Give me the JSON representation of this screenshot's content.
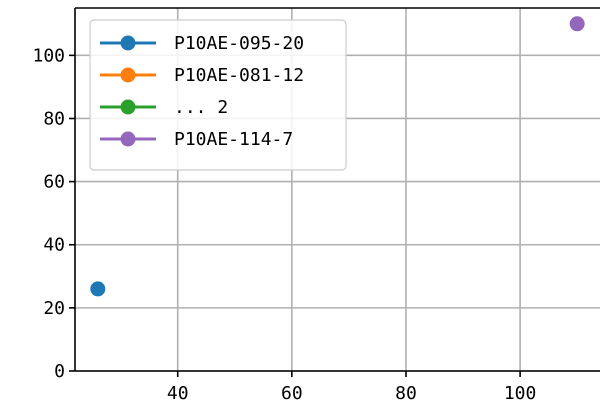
{
  "chart_data": {
    "type": "line",
    "title": "",
    "xlabel": "",
    "ylabel": "",
    "xlim": [
      22,
      114
    ],
    "ylim": [
      0,
      115
    ],
    "x_ticks": [
      40,
      60,
      80,
      100
    ],
    "y_ticks": [
      0,
      20,
      40,
      60,
      80,
      100
    ],
    "grid": true,
    "legend": {
      "position": "top-left"
    },
    "series": [
      {
        "name": "P10AE-095-20",
        "color": "#1f77b4",
        "points": [
          [
            26,
            26
          ]
        ]
      },
      {
        "name": "P10AE-081-12",
        "color": "#ff7f0e",
        "points": []
      },
      {
        "name": "... 2",
        "color": "#2ca02c",
        "points": []
      },
      {
        "name": "P10AE-114-7",
        "color": "#9467bd",
        "points": [
          [
            110,
            110
          ]
        ]
      }
    ]
  }
}
